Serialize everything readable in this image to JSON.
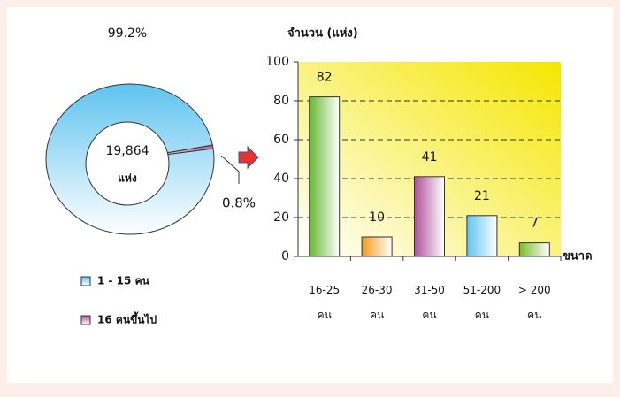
{
  "chart_data": [
    {
      "type": "pie",
      "values": [
        99.2,
        0.8
      ],
      "value_labels": [
        "99.2%",
        "0.8%"
      ],
      "labels": [
        "1 - 15 คน",
        "16 คนขึ้นไป"
      ],
      "colors": [
        "#5fc3f0",
        "#b0509a"
      ],
      "center_text": "19,864",
      "center_subtext": "แห่ง"
    },
    {
      "type": "bar",
      "y_label": "จำนวน (แห่ง)",
      "x_label": "ขนาด",
      "categories": [
        "16-25 คน",
        "26-30 คน",
        "31-50 คน",
        "51-200 คน",
        "> 200 คน"
      ],
      "values": [
        82,
        10,
        41,
        21,
        7
      ],
      "colors": [
        "#66b832",
        "#f39a1e",
        "#b0509a",
        "#5fc3f0",
        "#7cbd2a"
      ],
      "ylim": [
        0,
        100
      ],
      "yticks": [
        0,
        20,
        40,
        60,
        80,
        100
      ],
      "grid": true
    }
  ]
}
